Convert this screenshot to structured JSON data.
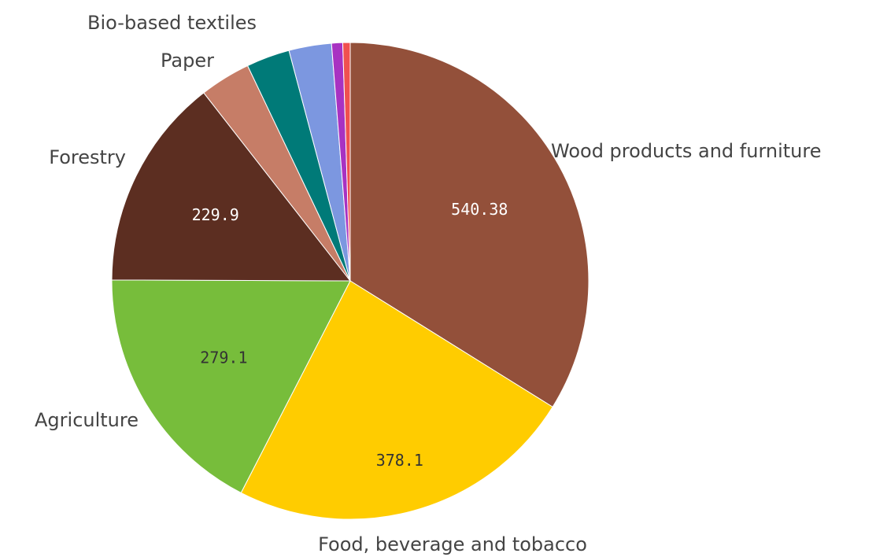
{
  "chart_data": {
    "type": "pie",
    "title": "",
    "legend": "none",
    "slices": [
      {
        "label": "Wood products and furniture",
        "value": 540.38,
        "value_label": "540.38",
        "color": "#93503A",
        "value_label_color": "#ffffff"
      },
      {
        "label": "Food, beverage and tobacco",
        "value": 378.1,
        "value_label": "378.1",
        "color": "#FFCC00",
        "value_label_color": "#333333"
      },
      {
        "label": "Agriculture",
        "value": 279.1,
        "value_label": "279.1",
        "color": "#77BD3B",
        "value_label_color": "#333333"
      },
      {
        "label": "Forestry",
        "value": 229.9,
        "value_label": "229.9",
        "color": "#5C2E21",
        "value_label_color": "#ffffff"
      },
      {
        "label": "Paper",
        "value": 55,
        "value_label": "",
        "color": "#C67D67",
        "value_label_color": "#ffffff"
      },
      {
        "label": "Bio-based textiles",
        "value": 47,
        "value_label": "",
        "color": "#007A78",
        "value_label_color": "#ffffff"
      },
      {
        "label": "",
        "value": 46,
        "value_label": "",
        "color": "#7C97E0",
        "value_label_color": "#ffffff"
      },
      {
        "label": "",
        "value": 12,
        "value_label": "",
        "color": "#A832C2",
        "value_label_color": "#ffffff"
      },
      {
        "label": "",
        "value": 8,
        "value_label": "",
        "color": "#F05050",
        "value_label_color": "#ffffff"
      }
    ]
  }
}
